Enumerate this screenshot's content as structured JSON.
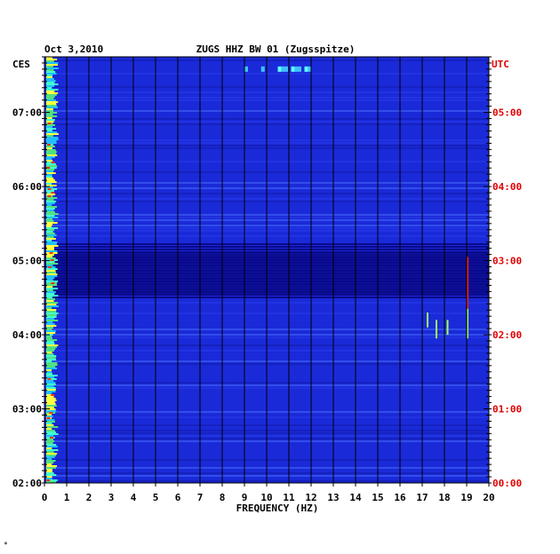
{
  "chart_data": {
    "type": "heatmap",
    "title_date": "Oct 3,2010",
    "title": "ZUGS HHZ BW 01 (Zugsspitze)",
    "xlabel": "FREQUENCY (HZ)",
    "xlim": [
      0,
      20
    ],
    "x_ticks": [
      "0",
      "1",
      "2",
      "3",
      "4",
      "5",
      "6",
      "7",
      "8",
      "9",
      "10",
      "11",
      "12",
      "13",
      "14",
      "15",
      "16",
      "17",
      "18",
      "19",
      "20"
    ],
    "left_axis_label": "CES",
    "right_axis_label": "UTC",
    "left_ticks": [
      "02:00",
      "03:00",
      "04:00",
      "05:00",
      "06:00",
      "07:00"
    ],
    "right_ticks": [
      "00:00",
      "01:00",
      "02:00",
      "03:00",
      "04:00",
      "05:00"
    ],
    "ylim_local_hours": [
      2.0,
      7.75
    ],
    "colors": {
      "background": "#1a2ad8",
      "dark_band": "#0a0a8a",
      "red_axis": "#e00000",
      "grid": "#000000"
    },
    "features": [
      {
        "desc": "strong low-frequency energy",
        "freq_hz": [
          0.0,
          0.6
        ],
        "local_time": "all"
      },
      {
        "desc": "high energy bursts",
        "freq_hz": [
          9.0,
          12.5
        ],
        "local_time": "07:35"
      },
      {
        "desc": "dark quiet band",
        "freq_hz": [
          0,
          20
        ],
        "local_time": "04:30-05:15"
      },
      {
        "desc": "narrow spikes",
        "freq_hz": [
          17.0,
          19.0
        ],
        "local_time": "03:55-05:10"
      }
    ]
  },
  "footer_mark": "*"
}
